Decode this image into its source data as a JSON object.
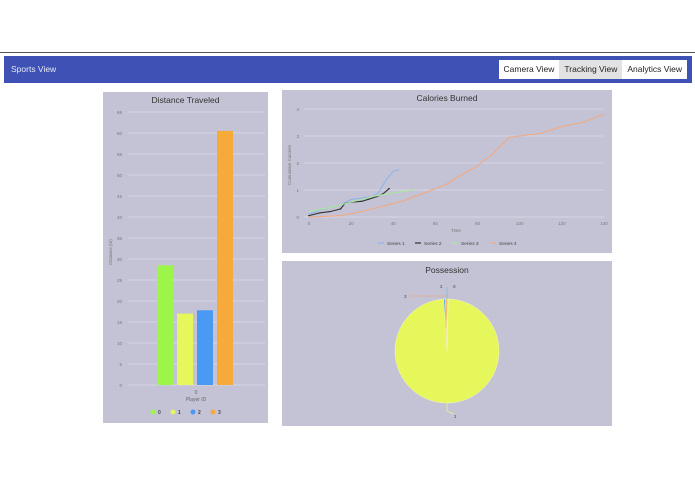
{
  "navbar": {
    "brand": "Sports View",
    "buttons": [
      {
        "label": "Camera View",
        "active": false
      },
      {
        "label": "Tracking View",
        "active": true
      },
      {
        "label": "Analytics View",
        "active": false
      }
    ]
  },
  "chart_data": [
    {
      "type": "bar",
      "title": "Distance Traveled",
      "xlabel": "Player ID",
      "ylabel": "Distance (m)",
      "categories": [
        "0"
      ],
      "series": [
        {
          "name": "0",
          "values": [
            28.5
          ],
          "color": "#9ef54a"
        },
        {
          "name": "1",
          "values": [
            17
          ],
          "color": "#e5f75a"
        },
        {
          "name": "2",
          "values": [
            17.8
          ],
          "color": "#4a9af5"
        },
        {
          "name": "3",
          "values": [
            60.5
          ],
          "color": "#f5aa3a"
        }
      ],
      "ylim": [
        0,
        65
      ],
      "yticks": [
        0,
        5,
        10,
        15,
        20,
        25,
        30,
        35,
        40,
        45,
        50,
        55,
        60,
        65
      ],
      "grid": true,
      "legend_position": "bottom"
    },
    {
      "type": "line",
      "title": "Calories Burned",
      "xlabel": "Time",
      "ylabel": "Cumulative Calories",
      "xlim": [
        0,
        140
      ],
      "ylim": [
        0,
        4
      ],
      "xticks": [
        0,
        20,
        40,
        60,
        80,
        100,
        120,
        140
      ],
      "yticks": [
        0,
        1,
        2,
        3,
        4
      ],
      "grid": true,
      "legend_position": "bottom",
      "series": [
        {
          "name": "Series 1",
          "color": "#8fb4e8",
          "x": [
            0,
            5,
            10,
            15,
            20,
            25,
            30,
            33,
            36,
            40,
            43
          ],
          "y": [
            0.1,
            0.25,
            0.35,
            0.45,
            0.65,
            0.7,
            0.75,
            0.9,
            1.3,
            1.7,
            1.75
          ]
        },
        {
          "name": "Series 2",
          "color": "#333333",
          "x": [
            0,
            5,
            10,
            15,
            17,
            20,
            25,
            28,
            32,
            35,
            38
          ],
          "y": [
            0.05,
            0.15,
            0.2,
            0.3,
            0.5,
            0.55,
            0.58,
            0.65,
            0.75,
            0.85,
            1.05
          ]
        },
        {
          "name": "Series 3",
          "color": "#a8e89a",
          "x": [
            0,
            10,
            20,
            30,
            40,
            50
          ],
          "y": [
            0.2,
            0.35,
            0.55,
            0.75,
            0.9,
            1.0
          ]
        },
        {
          "name": "Series 4",
          "color": "#f0aa80",
          "x": [
            0,
            15,
            25,
            35,
            45,
            55,
            65,
            70,
            80,
            88,
            95,
            100,
            110,
            120,
            130,
            140
          ],
          "y": [
            0,
            0.05,
            0.2,
            0.4,
            0.6,
            0.9,
            1.2,
            1.45,
            1.9,
            2.4,
            2.95,
            3.0,
            3.1,
            3.35,
            3.5,
            3.8
          ]
        }
      ]
    },
    {
      "type": "pie",
      "title": "Possession",
      "slices": [
        {
          "label": "0",
          "value": 0.4,
          "color": "#a8e89a"
        },
        {
          "label": "1",
          "value": 98.6,
          "color": "#e5f75a"
        },
        {
          "label": "2",
          "value": 0.5,
          "color": "#4a9af5"
        },
        {
          "label": "3",
          "value": 0.5,
          "color": "#f5aa3a"
        }
      ]
    }
  ]
}
